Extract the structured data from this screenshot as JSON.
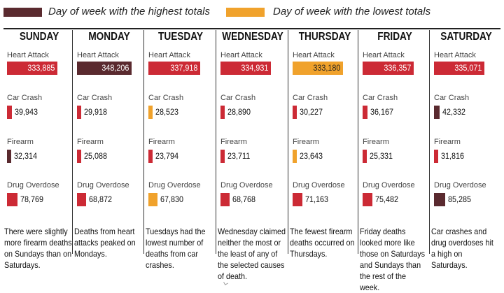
{
  "colors": {
    "highest": "#5a2a2f",
    "lowest": "#f0a22c",
    "normal": "#cc2a35"
  },
  "legend": [
    {
      "label": "Day of week with the highest totals",
      "color_key": "highest"
    },
    {
      "label": "Day of week with the lowest totals",
      "color_key": "lowest"
    }
  ],
  "chart_data": {
    "type": "bar",
    "categories": [
      "SUNDAY",
      "MONDAY",
      "TUESDAY",
      "WEDNESDAY",
      "THURSDAY",
      "FRIDAY",
      "SATURDAY"
    ],
    "series": [
      {
        "name": "Heart Attack",
        "values": [
          333885,
          348206,
          337918,
          334931,
          333180,
          336357,
          335071
        ],
        "labels": [
          "333,885",
          "348,206",
          "337,918",
          "334,931",
          "333,180",
          "336,357",
          "335,071"
        ],
        "status": [
          "normal",
          "highest",
          "normal",
          "normal",
          "lowest",
          "normal",
          "normal"
        ]
      },
      {
        "name": "Car Crash",
        "values": [
          39943,
          29918,
          28523,
          28890,
          30227,
          36167,
          42332
        ],
        "labels": [
          "39,943",
          "29,918",
          "28,523",
          "28,890",
          "30,227",
          "36,167",
          "42,332"
        ],
        "status": [
          "normal",
          "normal",
          "lowest",
          "normal",
          "normal",
          "normal",
          "highest"
        ]
      },
      {
        "name": "Firearm",
        "values": [
          32314,
          25088,
          23794,
          23711,
          23643,
          25331,
          31816
        ],
        "labels": [
          "32,314",
          "25,088",
          "23,794",
          "23,711",
          "23,643",
          "25,331",
          "31,816"
        ],
        "status": [
          "highest",
          "normal",
          "normal",
          "normal",
          "lowest",
          "normal",
          "normal"
        ]
      },
      {
        "name": "Drug Overdose",
        "values": [
          78769,
          68872,
          67830,
          68768,
          71163,
          75482,
          85285
        ],
        "labels": [
          "78,769",
          "68,872",
          "67,830",
          "68,768",
          "71,163",
          "75,482",
          "85,285"
        ],
        "status": [
          "normal",
          "normal",
          "lowest",
          "normal",
          "normal",
          "normal",
          "highest"
        ]
      }
    ],
    "notes": [
      "There were slightly more firearm deaths on Sundays than on Saturdays.",
      "Deaths from heart attacks peaked on Mondays.",
      "Tuesdays had the lowest number of deaths from car crashes.",
      "Wednesday claimed neither the most or the least of any of the selected causes of death.",
      "The fewest firearm deaths occurred on Thursdays.",
      "Friday deaths looked more like those on Saturdays and Sundays than the rest of the week.",
      "Car crashes and drug overdoses hit a high on Saturdays."
    ]
  }
}
